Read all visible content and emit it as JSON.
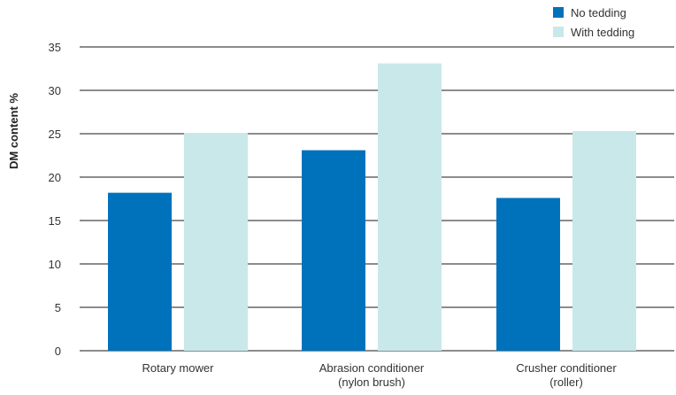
{
  "chart_data": {
    "type": "bar",
    "categories": [
      [
        "Rotary mower"
      ],
      [
        "Abrasion conditioner",
        "(nylon brush)"
      ],
      [
        "Crusher conditioner",
        "(roller)"
      ]
    ],
    "series": [
      {
        "name": "No tedding",
        "color": "#0072bc",
        "values": [
          18.2,
          23.1,
          17.6
        ]
      },
      {
        "name": "With tedding",
        "color": "#c9e8ea",
        "values": [
          25.1,
          33.1,
          25.3
        ]
      }
    ],
    "ylabel": "DM content %",
    "xlabel": "",
    "ylim": [
      0,
      35
    ],
    "yticks": [
      0,
      5,
      10,
      15,
      20,
      25,
      30,
      35
    ],
    "grid": true,
    "legend_position": "top-right"
  }
}
